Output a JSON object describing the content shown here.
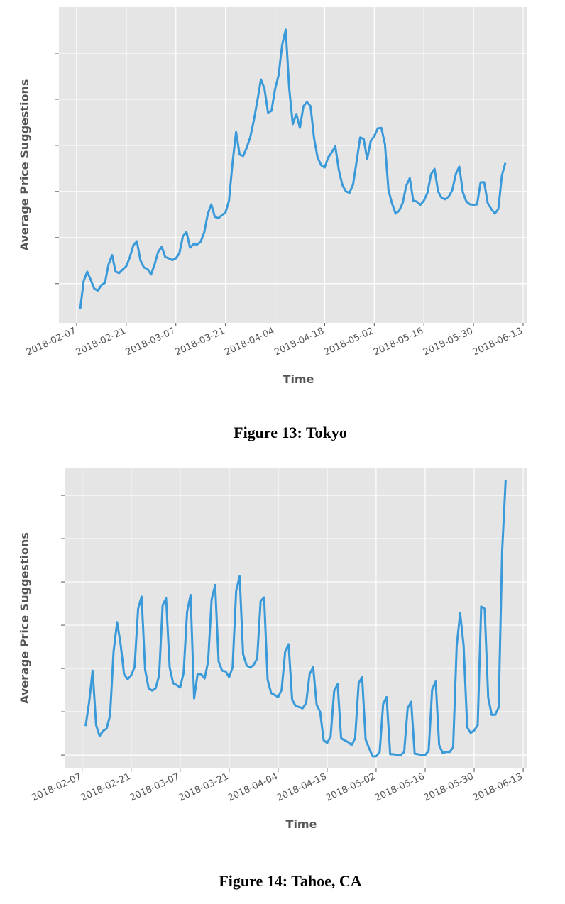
{
  "chart_data": [
    {
      "type": "line",
      "caption": "Figure 13: Tokyo",
      "xlabel": "Time",
      "ylabel": "Average Price Suggestions",
      "color": "#3a9ad9",
      "grid": true,
      "xlim": [
        "2018-02-02",
        "2018-06-14"
      ],
      "ylim": [
        0.15,
        7.0
      ],
      "yticks": [
        1,
        2,
        3,
        4,
        5,
        6
      ],
      "xticks": [
        "2018-02-07",
        "2018-02-21",
        "2018-03-07",
        "2018-03-21",
        "2018-04-04",
        "2018-04-18",
        "2018-05-02",
        "2018-05-16",
        "2018-05-30",
        "2018-06-13"
      ],
      "x": [
        "2018-02-08",
        "2018-02-09",
        "2018-02-10",
        "2018-02-11",
        "2018-02-12",
        "2018-02-13",
        "2018-02-14",
        "2018-02-15",
        "2018-02-16",
        "2018-02-17",
        "2018-02-18",
        "2018-02-19",
        "2018-02-20",
        "2018-02-21",
        "2018-02-22",
        "2018-02-23",
        "2018-02-24",
        "2018-02-25",
        "2018-02-26",
        "2018-02-27",
        "2018-02-28",
        "2018-03-01",
        "2018-03-02",
        "2018-03-03",
        "2018-03-04",
        "2018-03-05",
        "2018-03-06",
        "2018-03-07",
        "2018-03-08",
        "2018-03-09",
        "2018-03-10",
        "2018-03-11",
        "2018-03-12",
        "2018-03-13",
        "2018-03-14",
        "2018-03-15",
        "2018-03-16",
        "2018-03-17",
        "2018-03-18",
        "2018-03-19",
        "2018-03-20",
        "2018-03-21",
        "2018-03-22",
        "2018-03-23",
        "2018-03-24",
        "2018-03-25",
        "2018-03-26",
        "2018-03-27",
        "2018-03-28",
        "2018-03-29",
        "2018-03-30",
        "2018-03-31",
        "2018-04-01",
        "2018-04-02",
        "2018-04-03",
        "2018-04-04",
        "2018-04-05",
        "2018-04-06",
        "2018-04-07",
        "2018-04-08",
        "2018-04-09",
        "2018-04-10",
        "2018-04-11",
        "2018-04-12",
        "2018-04-13",
        "2018-04-14",
        "2018-04-15",
        "2018-04-16",
        "2018-04-17",
        "2018-04-18",
        "2018-04-19",
        "2018-04-20",
        "2018-04-21",
        "2018-04-22",
        "2018-04-23",
        "2018-04-24",
        "2018-04-25",
        "2018-04-26",
        "2018-04-27",
        "2018-04-28",
        "2018-04-29",
        "2018-04-30",
        "2018-05-01",
        "2018-05-02",
        "2018-05-03",
        "2018-05-04",
        "2018-05-05",
        "2018-05-06",
        "2018-05-07",
        "2018-05-08",
        "2018-05-09",
        "2018-05-10",
        "2018-05-11",
        "2018-05-12",
        "2018-05-13",
        "2018-05-14",
        "2018-05-15",
        "2018-05-16",
        "2018-05-17",
        "2018-05-18",
        "2018-05-19",
        "2018-05-20",
        "2018-05-21",
        "2018-05-22",
        "2018-05-23",
        "2018-05-24",
        "2018-05-25",
        "2018-05-26",
        "2018-05-27",
        "2018-05-28",
        "2018-05-29",
        "2018-05-30",
        "2018-05-31",
        "2018-06-01",
        "2018-06-02",
        "2018-06-03",
        "2018-06-04",
        "2018-06-05",
        "2018-06-06",
        "2018-06-07",
        "2018-06-08"
      ],
      "values": [
        0.45,
        1.06,
        1.26,
        1.08,
        0.89,
        0.85,
        0.97,
        1.02,
        1.42,
        1.62,
        1.26,
        1.23,
        1.31,
        1.38,
        1.57,
        1.83,
        1.92,
        1.51,
        1.35,
        1.32,
        1.2,
        1.42,
        1.69,
        1.8,
        1.58,
        1.55,
        1.51,
        1.55,
        1.66,
        2.03,
        2.12,
        1.78,
        1.86,
        1.85,
        1.91,
        2.11,
        2.51,
        2.72,
        2.45,
        2.42,
        2.49,
        2.54,
        2.8,
        3.62,
        4.29,
        3.8,
        3.77,
        3.95,
        4.18,
        4.54,
        4.97,
        5.43,
        5.23,
        4.71,
        4.75,
        5.22,
        5.52,
        6.18,
        6.51,
        5.23,
        4.46,
        4.68,
        4.38,
        4.85,
        4.94,
        4.85,
        4.15,
        3.74,
        3.57,
        3.52,
        3.74,
        3.85,
        3.98,
        3.46,
        3.14,
        3.0,
        2.97,
        3.15,
        3.65,
        4.17,
        4.14,
        3.71,
        4.09,
        4.2,
        4.37,
        4.38,
        4.03,
        3.03,
        2.74,
        2.52,
        2.58,
        2.75,
        3.12,
        3.29,
        2.8,
        2.78,
        2.71,
        2.8,
        2.97,
        3.37,
        3.49,
        3.0,
        2.86,
        2.83,
        2.89,
        3.03,
        3.38,
        3.54,
        2.98,
        2.78,
        2.72,
        2.71,
        2.72,
        3.2,
        3.2,
        2.75,
        2.62,
        2.52,
        2.62,
        3.35,
        3.62
      ]
    },
    {
      "type": "line",
      "caption": "Figure 14: Tahoe, CA",
      "xlabel": "Time",
      "ylabel": "Average Price Suggestions",
      "color": "#3a9ad9",
      "grid": true,
      "xlim": [
        "2018-02-02",
        "2018-06-14"
      ],
      "ylim": [
        0.69,
        7.64
      ],
      "yticks": [
        1,
        2,
        3,
        4,
        5,
        6,
        7
      ],
      "xticks": [
        "2018-02-07",
        "2018-02-21",
        "2018-03-07",
        "2018-03-21",
        "2018-04-04",
        "2018-04-18",
        "2018-05-02",
        "2018-05-16",
        "2018-05-30",
        "2018-06-13"
      ],
      "x": [
        "2018-02-08",
        "2018-02-09",
        "2018-02-10",
        "2018-02-11",
        "2018-02-12",
        "2018-02-13",
        "2018-02-14",
        "2018-02-15",
        "2018-02-16",
        "2018-02-17",
        "2018-02-18",
        "2018-02-19",
        "2018-02-20",
        "2018-02-21",
        "2018-02-22",
        "2018-02-23",
        "2018-02-24",
        "2018-02-25",
        "2018-02-26",
        "2018-02-27",
        "2018-02-28",
        "2018-03-01",
        "2018-03-02",
        "2018-03-03",
        "2018-03-04",
        "2018-03-05",
        "2018-03-06",
        "2018-03-07",
        "2018-03-08",
        "2018-03-09",
        "2018-03-10",
        "2018-03-11",
        "2018-03-12",
        "2018-03-13",
        "2018-03-14",
        "2018-03-15",
        "2018-03-16",
        "2018-03-17",
        "2018-03-18",
        "2018-03-19",
        "2018-03-20",
        "2018-03-21",
        "2018-03-22",
        "2018-03-23",
        "2018-03-24",
        "2018-03-25",
        "2018-03-26",
        "2018-03-27",
        "2018-03-28",
        "2018-03-29",
        "2018-03-30",
        "2018-03-31",
        "2018-04-01",
        "2018-04-02",
        "2018-04-03",
        "2018-04-04",
        "2018-04-05",
        "2018-04-06",
        "2018-04-07",
        "2018-04-08",
        "2018-04-09",
        "2018-04-10",
        "2018-04-11",
        "2018-04-12",
        "2018-04-13",
        "2018-04-14",
        "2018-04-15",
        "2018-04-16",
        "2018-04-17",
        "2018-04-18",
        "2018-04-19",
        "2018-04-20",
        "2018-04-21",
        "2018-04-22",
        "2018-04-23",
        "2018-04-24",
        "2018-04-25",
        "2018-04-26",
        "2018-04-27",
        "2018-04-28",
        "2018-04-29",
        "2018-04-30",
        "2018-05-01",
        "2018-05-02",
        "2018-05-03",
        "2018-05-04",
        "2018-05-05",
        "2018-05-06",
        "2018-05-07",
        "2018-05-08",
        "2018-05-09",
        "2018-05-10",
        "2018-05-11",
        "2018-05-12",
        "2018-05-13",
        "2018-05-14",
        "2018-05-15",
        "2018-05-16",
        "2018-05-17",
        "2018-05-18",
        "2018-05-19",
        "2018-05-20",
        "2018-05-21",
        "2018-05-22",
        "2018-05-23",
        "2018-05-24",
        "2018-05-25",
        "2018-05-26",
        "2018-05-27",
        "2018-05-28",
        "2018-05-29",
        "2018-05-30",
        "2018-05-31",
        "2018-06-01",
        "2018-06-02",
        "2018-06-03",
        "2018-06-04",
        "2018-06-05",
        "2018-06-06",
        "2018-06-07",
        "2018-06-08"
      ],
      "values": [
        1.67,
        2.21,
        2.95,
        1.69,
        1.44,
        1.56,
        1.61,
        1.92,
        3.39,
        4.07,
        3.56,
        2.87,
        2.75,
        2.84,
        3.03,
        4.38,
        4.66,
        2.98,
        2.54,
        2.49,
        2.54,
        2.84,
        4.46,
        4.62,
        3.03,
        2.66,
        2.62,
        2.56,
        2.9,
        4.31,
        4.7,
        2.31,
        2.87,
        2.87,
        2.77,
        3.16,
        4.59,
        4.93,
        3.16,
        2.95,
        2.93,
        2.8,
        3.03,
        4.79,
        5.13,
        3.33,
        3.07,
        3.02,
        3.08,
        3.23,
        4.56,
        4.64,
        2.74,
        2.43,
        2.39,
        2.34,
        2.51,
        3.38,
        3.56,
        2.28,
        2.13,
        2.11,
        2.08,
        2.2,
        2.87,
        3.03,
        2.16,
        2.0,
        1.34,
        1.28,
        1.43,
        2.48,
        2.64,
        1.39,
        1.34,
        1.3,
        1.23,
        1.39,
        2.66,
        2.8,
        1.36,
        1.15,
        0.97,
        0.97,
        1.07,
        2.18,
        2.34,
        1.02,
        1.02,
        1.0,
        1.0,
        1.07,
        2.08,
        2.23,
        1.03,
        1.02,
        1.0,
        1.0,
        1.1,
        2.51,
        2.7,
        1.23,
        1.05,
        1.07,
        1.07,
        1.18,
        3.52,
        4.28,
        3.52,
        1.64,
        1.51,
        1.57,
        1.69,
        4.43,
        4.38,
        2.33,
        1.93,
        1.93,
        2.1,
        5.74,
        7.36
      ]
    }
  ]
}
